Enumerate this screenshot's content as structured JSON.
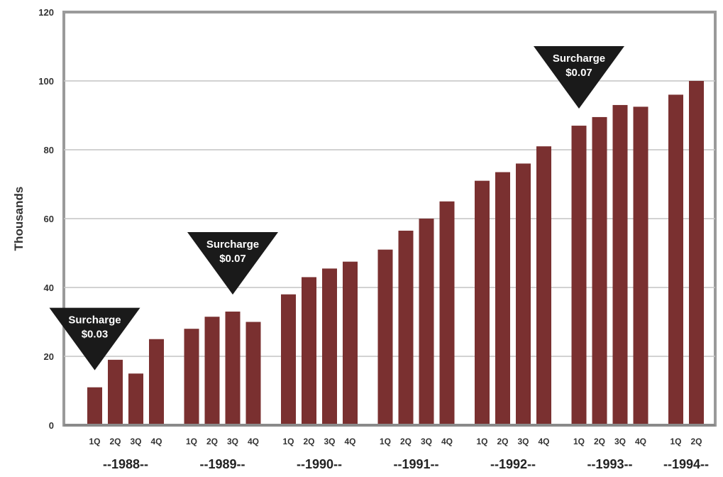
{
  "chart_data": {
    "type": "bar",
    "ylabel": "Thousands",
    "ylim": [
      0,
      120
    ],
    "yticks": [
      0,
      20,
      40,
      60,
      80,
      100,
      120
    ],
    "grid": true,
    "bar_color": "#7a3030",
    "groups": [
      {
        "year_label": "--1988--",
        "quarters": [
          "1Q",
          "2Q",
          "3Q",
          "4Q"
        ],
        "values": [
          11,
          19,
          15,
          25
        ]
      },
      {
        "year_label": "--1989--",
        "quarters": [
          "1Q",
          "2Q",
          "3Q",
          "4Q"
        ],
        "values": [
          28,
          31.5,
          33,
          30
        ]
      },
      {
        "year_label": "--1990--",
        "quarters": [
          "1Q",
          "2Q",
          "3Q",
          "4Q"
        ],
        "values": [
          38,
          43,
          45.5,
          47.5
        ]
      },
      {
        "year_label": "--1991--",
        "quarters": [
          "1Q",
          "2Q",
          "3Q",
          "4Q"
        ],
        "values": [
          51,
          56.5,
          60,
          65
        ]
      },
      {
        "year_label": "--1992--",
        "quarters": [
          "1Q",
          "2Q",
          "3Q",
          "4Q"
        ],
        "values": [
          71,
          73.5,
          76,
          81
        ]
      },
      {
        "year_label": "--1993--",
        "quarters": [
          "1Q",
          "2Q",
          "3Q",
          "4Q"
        ],
        "values": [
          87,
          89.5,
          93,
          92.5
        ]
      },
      {
        "year_label": "--1994--",
        "quarters": [
          "1Q",
          "2Q"
        ],
        "values": [
          96,
          100
        ]
      }
    ],
    "annotations": [
      {
        "line1": "Surcharge",
        "line2": "$0.03",
        "group": 0,
        "quarter": 0
      },
      {
        "line1": "Surcharge",
        "line2": "$0.07",
        "group": 1,
        "quarter": 2
      },
      {
        "line1": "Surcharge",
        "line2": "$0.07",
        "group": 5,
        "quarter": 0
      }
    ]
  }
}
